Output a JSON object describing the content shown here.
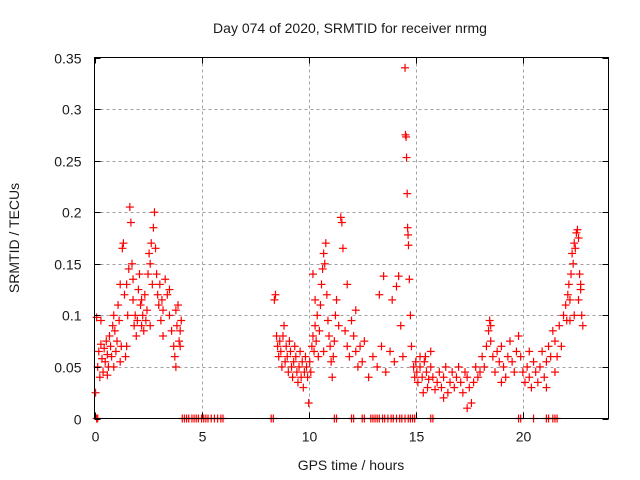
{
  "chart_data": {
    "type": "scatter",
    "title": "Day 074 of 2020, SRMTID for receiver nrmg",
    "xlabel": "GPS time / hours",
    "ylabel": "SRMTID / TECUs",
    "xlim": [
      0,
      24
    ],
    "ylim": [
      0,
      0.35
    ],
    "xticks": [
      0,
      5,
      10,
      15,
      20
    ],
    "xtick_labels": [
      "0",
      "5",
      "10",
      "15",
      "20"
    ],
    "yticks": [
      0,
      0.05,
      0.1,
      0.15,
      0.2,
      0.25,
      0.3,
      0.35
    ],
    "ytick_labels": [
      "0",
      "0.05",
      "0.1",
      "0.15",
      "0.2",
      "0.25",
      "0.3",
      "0.35"
    ],
    "grid": true,
    "marker": "plus",
    "series": [
      {
        "name": "SRMTID",
        "color": "#ff0000",
        "points": [
          [
            0.05,
            0.025
          ],
          [
            0.1,
            0.098
          ],
          [
            0.15,
            0.05
          ],
          [
            0.2,
            0.065
          ],
          [
            0.25,
            0.04
          ],
          [
            0.3,
            0.072
          ],
          [
            0.35,
            0.058
          ],
          [
            0.4,
            0.045
          ],
          [
            0.45,
            0.068
          ],
          [
            0.5,
            0.055
          ],
          [
            0.55,
            0.075
          ],
          [
            0.6,
            0.062
          ],
          [
            0.65,
            0.05
          ],
          [
            0.7,
            0.08
          ],
          [
            0.75,
            0.07
          ],
          [
            0.8,
            0.06
          ],
          [
            0.85,
            0.09
          ],
          [
            0.9,
            0.1
          ],
          [
            0.95,
            0.085
          ],
          [
            1.0,
            0.065
          ],
          [
            1.05,
            0.075
          ],
          [
            1.1,
            0.11
          ],
          [
            1.15,
            0.095
          ],
          [
            1.2,
            0.13
          ],
          [
            1.25,
            0.07
          ],
          [
            1.3,
            0.165
          ],
          [
            1.35,
            0.17
          ],
          [
            1.4,
            0.12
          ],
          [
            1.45,
            0.06
          ],
          [
            1.5,
            0.13
          ],
          [
            1.55,
            0.1
          ],
          [
            1.6,
            0.145
          ],
          [
            1.65,
            0.205
          ],
          [
            1.7,
            0.19
          ],
          [
            1.75,
            0.15
          ],
          [
            1.8,
            0.115
          ],
          [
            1.85,
            0.09
          ],
          [
            1.9,
            0.1
          ],
          [
            1.95,
            0.08
          ],
          [
            2.0,
            0.095
          ],
          [
            2.05,
            0.125
          ],
          [
            2.1,
            0.14
          ],
          [
            2.15,
            0.11
          ],
          [
            2.2,
            0.09
          ],
          [
            2.25,
            0.1
          ],
          [
            2.3,
            0.085
          ],
          [
            2.35,
            0.12
          ],
          [
            2.4,
            0.095
          ],
          [
            2.45,
            0.105
          ],
          [
            2.5,
            0.14
          ],
          [
            2.55,
            0.16
          ],
          [
            2.6,
            0.15
          ],
          [
            2.65,
            0.17
          ],
          [
            2.7,
            0.13
          ],
          [
            2.75,
            0.185
          ],
          [
            2.8,
            0.2
          ],
          [
            2.85,
            0.165
          ],
          [
            2.9,
            0.14
          ],
          [
            2.95,
            0.12
          ],
          [
            3.0,
            0.11
          ],
          [
            3.05,
            0.13
          ],
          [
            3.1,
            0.095
          ],
          [
            3.15,
            0.115
          ],
          [
            3.2,
            0.105
          ],
          [
            3.3,
            0.135
          ],
          [
            3.4,
            0.12
          ],
          [
            3.5,
            0.1
          ],
          [
            3.6,
            0.085
          ],
          [
            3.7,
            0.07
          ],
          [
            3.75,
            0.06
          ],
          [
            3.8,
            0.05
          ],
          [
            3.85,
            0.09
          ],
          [
            3.9,
            0.11
          ],
          [
            3.95,
            0.075
          ],
          [
            4.0,
            0.085
          ],
          [
            4.05,
            0.095
          ],
          [
            0.3,
            0.095
          ],
          [
            0.6,
            0.042
          ],
          [
            0.9,
            0.05
          ],
          [
            1.2,
            0.055
          ],
          [
            1.5,
            0.07
          ],
          [
            1.8,
            0.135
          ],
          [
            2.2,
            0.115
          ],
          [
            2.6,
            0.09
          ],
          [
            3.2,
            0.08
          ],
          [
            3.5,
            0.125
          ],
          [
            3.8,
            0.105
          ],
          [
            4.0,
            0.07
          ],
          [
            8.4,
            0.115
          ],
          [
            8.45,
            0.12
          ],
          [
            8.5,
            0.08
          ],
          [
            8.55,
            0.07
          ],
          [
            8.6,
            0.06
          ],
          [
            8.65,
            0.075
          ],
          [
            8.7,
            0.065
          ],
          [
            8.75,
            0.05
          ],
          [
            8.8,
            0.08
          ],
          [
            8.85,
            0.09
          ],
          [
            8.9,
            0.055
          ],
          [
            8.95,
            0.07
          ],
          [
            9.0,
            0.06
          ],
          [
            9.05,
            0.045
          ],
          [
            9.1,
            0.075
          ],
          [
            9.15,
            0.065
          ],
          [
            9.2,
            0.05
          ],
          [
            9.25,
            0.04
          ],
          [
            9.3,
            0.055
          ],
          [
            9.35,
            0.07
          ],
          [
            9.4,
            0.06
          ],
          [
            9.45,
            0.045
          ],
          [
            9.5,
            0.035
          ],
          [
            9.55,
            0.05
          ],
          [
            9.6,
            0.065
          ],
          [
            9.65,
            0.04
          ],
          [
            9.7,
            0.055
          ],
          [
            9.75,
            0.03
          ],
          [
            9.8,
            0.045
          ],
          [
            9.85,
            0.06
          ],
          [
            9.9,
            0.05
          ],
          [
            9.95,
            0.04
          ],
          [
            10.0,
            0.015
          ],
          [
            10.05,
            0.055
          ],
          [
            10.1,
            0.045
          ],
          [
            10.15,
            0.07
          ],
          [
            10.2,
            0.08
          ],
          [
            10.25,
            0.065
          ],
          [
            10.3,
            0.09
          ],
          [
            10.35,
            0.075
          ],
          [
            10.4,
            0.1
          ],
          [
            10.45,
            0.06
          ],
          [
            10.5,
            0.085
          ],
          [
            10.55,
            0.11
          ],
          [
            10.6,
            0.13
          ],
          [
            10.65,
            0.145
          ],
          [
            10.7,
            0.16
          ],
          [
            10.75,
            0.15
          ],
          [
            10.8,
            0.17
          ],
          [
            10.85,
            0.12
          ],
          [
            10.9,
            0.095
          ],
          [
            10.95,
            0.08
          ],
          [
            11.0,
            0.07
          ],
          [
            11.05,
            0.055
          ],
          [
            11.1,
            0.04
          ],
          [
            11.15,
            0.06
          ],
          [
            11.2,
            0.075
          ],
          [
            11.25,
            0.1
          ],
          [
            11.3,
            0.115
          ],
          [
            11.4,
            0.09
          ],
          [
            11.5,
            0.195
          ],
          [
            11.55,
            0.19
          ],
          [
            11.6,
            0.165
          ],
          [
            11.7,
            0.085
          ],
          [
            11.8,
            0.07
          ],
          [
            11.9,
            0.06
          ],
          [
            12.0,
            0.095
          ],
          [
            12.1,
            0.08
          ],
          [
            12.2,
            0.065
          ],
          [
            12.3,
            0.05
          ],
          [
            12.4,
            0.07
          ],
          [
            12.5,
            0.055
          ],
          [
            12.6,
            0.075
          ],
          [
            12.8,
            0.04
          ],
          [
            13.0,
            0.06
          ],
          [
            13.2,
            0.05
          ],
          [
            13.4,
            0.07
          ],
          [
            13.6,
            0.045
          ],
          [
            13.8,
            0.065
          ],
          [
            14.0,
            0.055
          ],
          [
            10.2,
            0.14
          ],
          [
            10.3,
            0.115
          ],
          [
            10.7,
            0.065
          ],
          [
            11.8,
            0.13
          ],
          [
            12.2,
            0.105
          ],
          [
            13.3,
            0.12
          ],
          [
            13.5,
            0.138
          ],
          [
            13.9,
            0.115
          ],
          [
            14.1,
            0.128
          ],
          [
            14.2,
            0.138
          ],
          [
            14.3,
            0.09
          ],
          [
            14.4,
            0.06
          ],
          [
            14.5,
            0.34
          ],
          [
            14.52,
            0.275
          ],
          [
            14.55,
            0.273
          ],
          [
            14.57,
            0.253
          ],
          [
            14.6,
            0.218
          ],
          [
            14.62,
            0.185
          ],
          [
            14.64,
            0.178
          ],
          [
            14.66,
            0.168
          ],
          [
            14.7,
            0.135
          ],
          [
            14.75,
            0.1
          ],
          [
            14.8,
            0.07
          ],
          [
            14.9,
            0.05
          ],
          [
            14.95,
            0.04
          ],
          [
            15.0,
            0.055
          ],
          [
            15.05,
            0.045
          ],
          [
            15.1,
            0.035
          ],
          [
            15.2,
            0.05
          ],
          [
            15.3,
            0.04
          ],
          [
            15.35,
            0.025
          ],
          [
            15.4,
            0.055
          ],
          [
            15.45,
            0.06
          ],
          [
            15.5,
            0.045
          ],
          [
            15.55,
            0.03
          ],
          [
            15.6,
            0.038
          ],
          [
            15.7,
            0.05
          ],
          [
            15.8,
            0.04
          ],
          [
            15.9,
            0.028
          ],
          [
            16.0,
            0.035
          ],
          [
            16.1,
            0.045
          ],
          [
            16.2,
            0.03
          ],
          [
            16.3,
            0.04
          ],
          [
            16.4,
            0.05
          ],
          [
            16.5,
            0.025
          ],
          [
            16.6,
            0.035
          ],
          [
            16.7,
            0.045
          ],
          [
            16.8,
            0.03
          ],
          [
            16.9,
            0.04
          ],
          [
            17.0,
            0.05
          ],
          [
            17.1,
            0.035
          ],
          [
            17.2,
            0.025
          ],
          [
            17.3,
            0.045
          ],
          [
            17.4,
            0.04
          ],
          [
            17.5,
            0.03
          ],
          [
            17.6,
            0.015
          ],
          [
            17.7,
            0.035
          ],
          [
            17.8,
            0.05
          ],
          [
            17.9,
            0.04
          ],
          [
            18.0,
            0.045
          ],
          [
            18.1,
            0.06
          ],
          [
            18.2,
            0.05
          ],
          [
            18.3,
            0.07
          ],
          [
            18.4,
            0.085
          ],
          [
            18.45,
            0.095
          ],
          [
            18.5,
            0.075
          ],
          [
            18.6,
            0.06
          ],
          [
            18.7,
            0.045
          ],
          [
            18.8,
            0.065
          ],
          [
            18.9,
            0.055
          ],
          [
            19.0,
            0.07
          ],
          [
            19.1,
            0.05
          ],
          [
            19.2,
            0.04
          ],
          [
            19.3,
            0.06
          ],
          [
            19.4,
            0.075
          ],
          [
            19.5,
            0.055
          ],
          [
            19.6,
            0.045
          ],
          [
            19.7,
            0.065
          ],
          [
            19.8,
            0.08
          ],
          [
            19.9,
            0.06
          ],
          [
            20.0,
            0.045
          ],
          [
            20.1,
            0.035
          ],
          [
            20.2,
            0.05
          ],
          [
            20.3,
            0.04
          ],
          [
            20.4,
            0.03
          ],
          [
            20.5,
            0.055
          ],
          [
            20.6,
            0.045
          ],
          [
            20.7,
            0.035
          ],
          [
            20.8,
            0.05
          ],
          [
            20.9,
            0.065
          ],
          [
            21.0,
            0.04
          ],
          [
            21.1,
            0.055
          ],
          [
            21.2,
            0.07
          ],
          [
            21.3,
            0.06
          ],
          [
            21.4,
            0.085
          ],
          [
            21.5,
            0.075
          ],
          [
            21.6,
            0.06
          ],
          [
            21.7,
            0.09
          ],
          [
            21.8,
            0.07
          ],
          [
            21.9,
            0.1
          ],
          [
            22.0,
            0.11
          ],
          [
            22.05,
            0.095
          ],
          [
            22.1,
            0.12
          ],
          [
            22.15,
            0.13
          ],
          [
            22.2,
            0.115
          ],
          [
            22.25,
            0.14
          ],
          [
            22.3,
            0.16
          ],
          [
            22.35,
            0.15
          ],
          [
            22.4,
            0.17
          ],
          [
            22.45,
            0.165
          ],
          [
            22.5,
            0.18
          ],
          [
            22.55,
            0.183
          ],
          [
            22.6,
            0.175
          ],
          [
            22.65,
            0.14
          ],
          [
            22.7,
            0.125
          ],
          [
            22.75,
            0.1
          ],
          [
            22.8,
            0.09
          ],
          [
            22.6,
            0.115
          ],
          [
            22.4,
            0.1
          ],
          [
            22.2,
            0.095
          ],
          [
            15.2,
            0.06
          ],
          [
            15.7,
            0.065
          ],
          [
            16.3,
            0.02
          ],
          [
            17.4,
            0.01
          ],
          [
            18.5,
            0.09
          ],
          [
            19.0,
            0.035
          ],
          [
            20.3,
            0.065
          ],
          [
            21.5,
            0.045
          ],
          [
            22.7,
            0.13
          ],
          [
            21.1,
            0.03
          ]
        ],
        "zero_points_hours": [
          0.1,
          0.15,
          4.1,
          4.2,
          4.3,
          4.4,
          4.55,
          4.65,
          4.75,
          4.85,
          5.0,
          5.1,
          5.2,
          5.3,
          5.45,
          5.6,
          5.75,
          5.9,
          6.0,
          8.25,
          8.35,
          11.2,
          11.3,
          12.0,
          12.1,
          12.5,
          12.6,
          12.9,
          13.0,
          13.1,
          13.2,
          13.3,
          13.45,
          13.55,
          13.7,
          13.85,
          13.95,
          14.1,
          14.25,
          14.35,
          14.5,
          14.65,
          14.75,
          14.85,
          14.95,
          15.7,
          15.8,
          19.8,
          19.9,
          20.5,
          21.1,
          21.2,
          21.4,
          21.5,
          21.6
        ]
      }
    ]
  }
}
